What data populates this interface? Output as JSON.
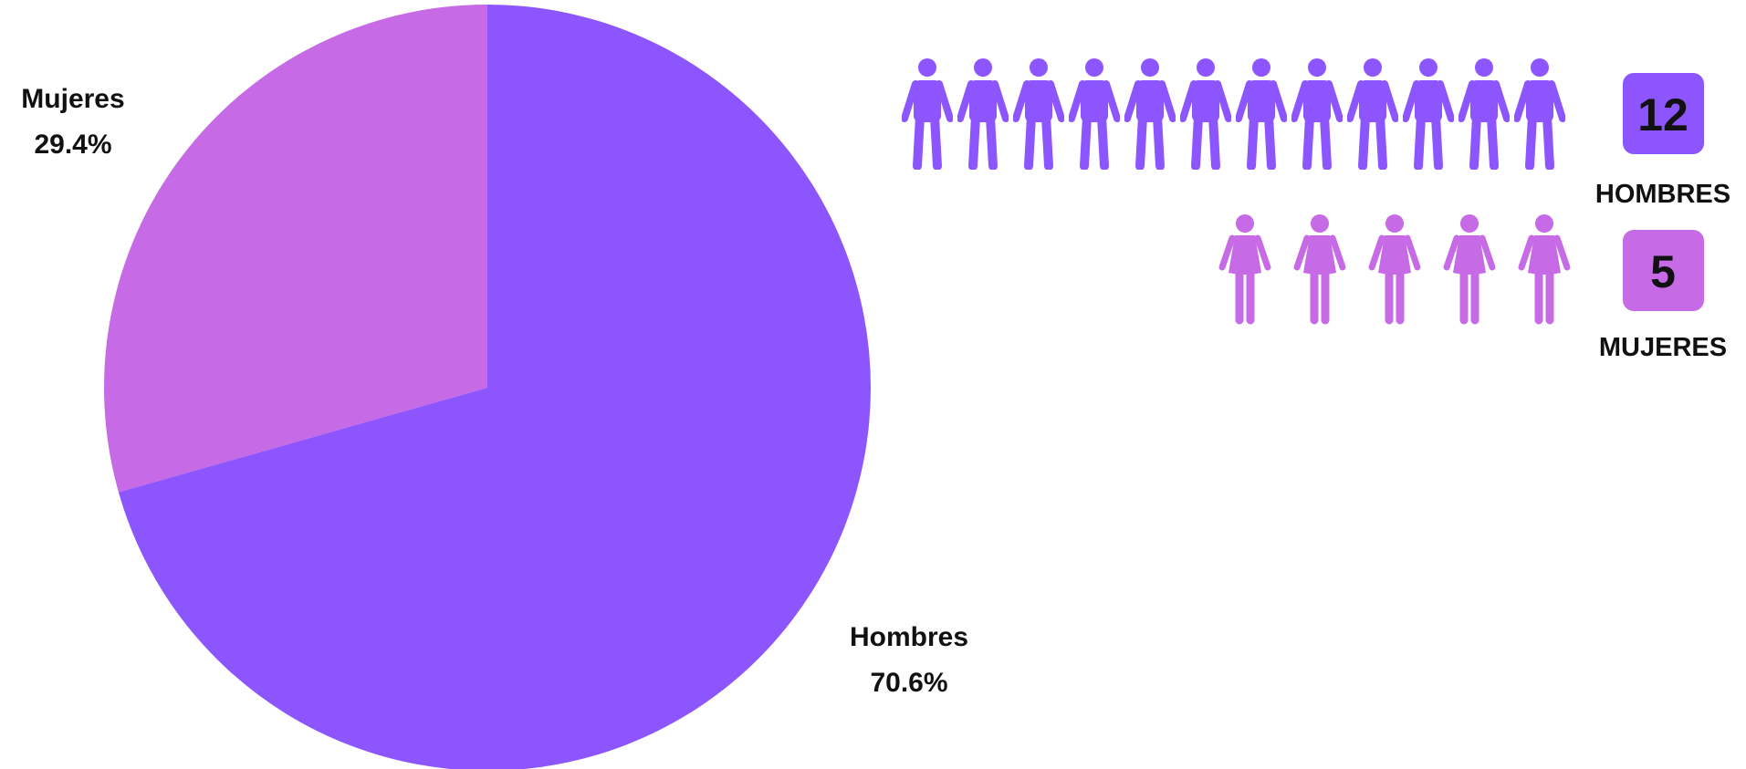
{
  "colors": {
    "hombres": "#8c55fd",
    "mujeres": "#c66ae6"
  },
  "chart_data": {
    "type": "pie",
    "slices": [
      {
        "name": "Mujeres",
        "value": 29.4,
        "label": "29.4%"
      },
      {
        "name": "Hombres",
        "value": 70.6,
        "label": "70.6%"
      }
    ],
    "start_angle_deg": 0,
    "direction": "counterclockwise"
  },
  "pictograph": {
    "groups": [
      {
        "key": "hombres",
        "icon": "man-icon",
        "count": 12,
        "count_label": "12",
        "caption": "HOMBRES"
      },
      {
        "key": "mujeres",
        "icon": "woman-icon",
        "count": 5,
        "count_label": "5",
        "caption": "MUJERES"
      }
    ]
  }
}
